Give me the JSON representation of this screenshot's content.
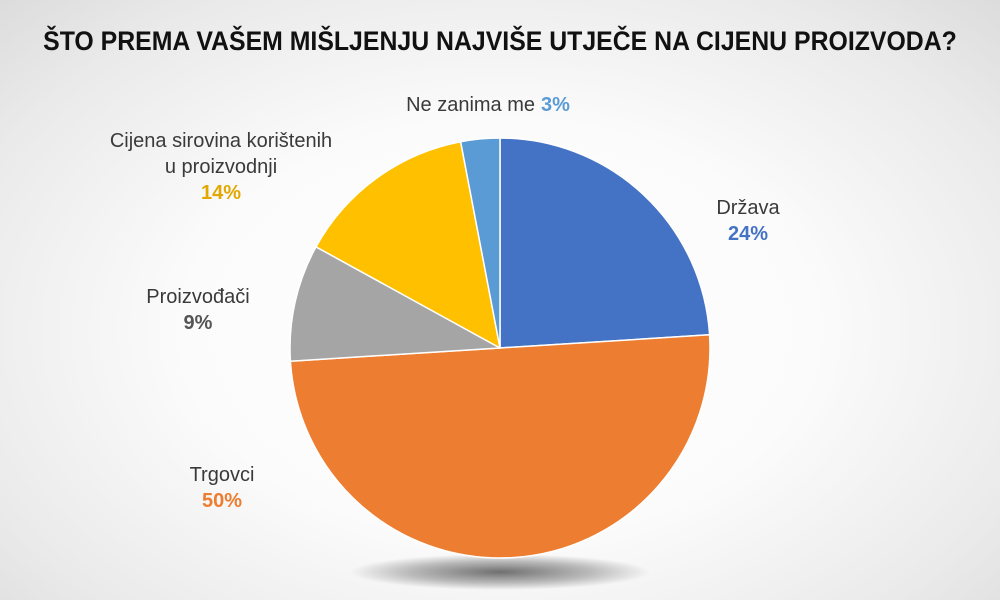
{
  "chart_data": {
    "type": "pie",
    "title": "ŠTO PREMA VAŠEM MIŠLJENJU NAJVIŠE UTJEČE NA CIJENU PROIZVODA?",
    "start_angle_deg": 0,
    "direction": "clockwise",
    "slices": [
      {
        "label": "Država",
        "value": 24,
        "value_label": "24%",
        "color": "#4472C4"
      },
      {
        "label": "Trgovci",
        "value": 50,
        "value_label": "50%",
        "color": "#ED7D31"
      },
      {
        "label": "Proizvođači",
        "value": 9,
        "value_label": "9%",
        "color": "#A5A5A5"
      },
      {
        "label_lines": [
          "Cijena sirovina korištenih",
          "u proizvodnji"
        ],
        "value": 14,
        "value_label": "14%",
        "color": "#FFC000"
      },
      {
        "label": "Ne zanima me",
        "value": 3,
        "value_label": "3%",
        "color": "#5B9BD5"
      }
    ]
  }
}
